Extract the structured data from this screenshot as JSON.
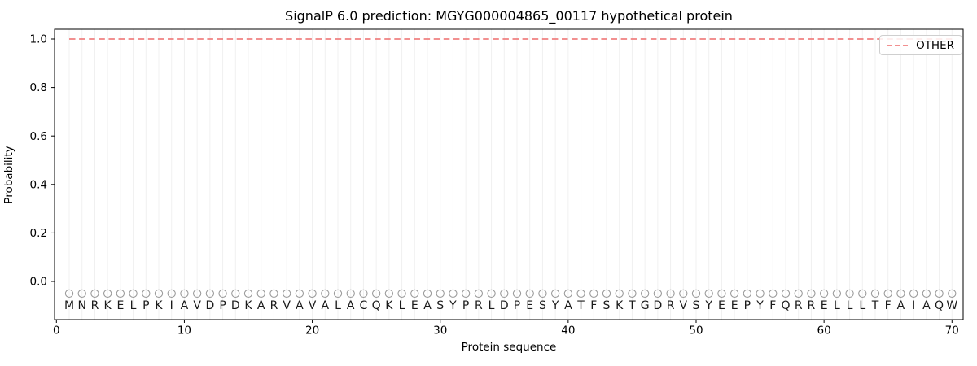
{
  "chart_data": {
    "type": "line",
    "title": "SignalP 6.0 prediction: MGYG000004865_00117 hypothetical protein",
    "xlabel": "Protein sequence",
    "ylabel": "Probability",
    "xticks": [
      0,
      10,
      20,
      30,
      40,
      50,
      60,
      70
    ],
    "yticks": [
      0.0,
      0.2,
      0.4,
      0.6,
      0.8,
      1.0
    ],
    "xlim": [
      -0.2,
      70.9
    ],
    "ylim": [
      -0.16,
      1.04
    ],
    "grid": {
      "vertical_per_residue": true,
      "horizontal": false,
      "color": "#f0f0f0"
    },
    "sequence": "MNRKELPKIAVDPDKARVAVALACQKLEASYPRLDPESYATFSKTGDRVSYEEPYFQRRELLLTFAIAQW",
    "sequence_length": 70,
    "series": [
      {
        "name": "OTHER",
        "linestyle": "dashed",
        "color": "#f08080",
        "x_start": 1,
        "x_end": 70,
        "y_constant": 1.0
      }
    ],
    "residue_markers": {
      "shape": "open-circle",
      "y": -0.05,
      "color": "#9a9a9a"
    },
    "legend": {
      "position": "upper-right",
      "entries": [
        {
          "label": "OTHER",
          "color": "#f08080",
          "linestyle": "dashed"
        }
      ]
    },
    "colors": {
      "axis": "#000000",
      "tick_labels": "#000000",
      "residue_letters": "#1a1a1a",
      "background": "#ffffff"
    }
  }
}
